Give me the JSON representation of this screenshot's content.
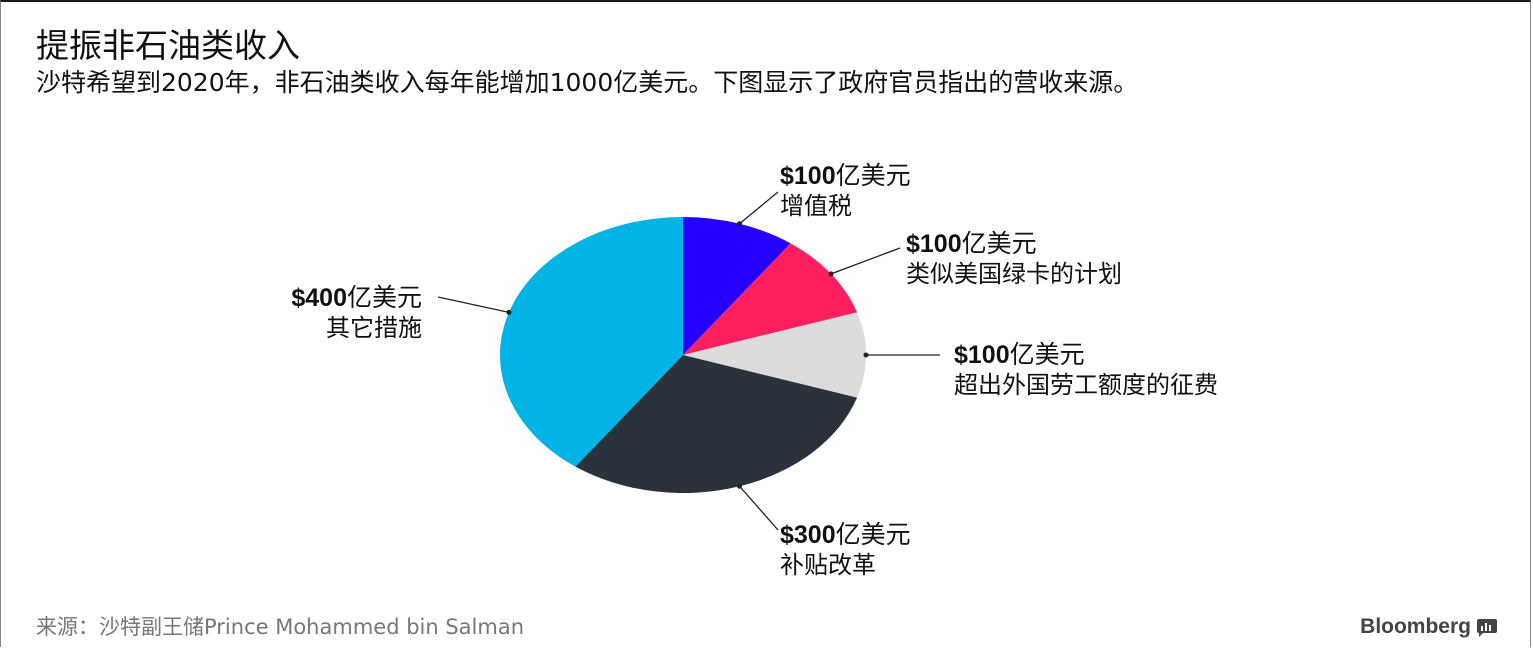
{
  "title": "提振非石油类收入",
  "subtitle": "沙特希望到2020年，非石油类收入每年能增加1000亿美元。下图显示了政府官员指出的营收来源。",
  "source": "来源：沙特副王储Prince Mohammed bin Salman",
  "brand": "Bloomberg",
  "brand_icon": "bloomberg-terminal-icon",
  "chart_data": {
    "type": "pie",
    "title": "提振非石油类收入",
    "unit": "亿美元",
    "slices": [
      {
        "label": "增值税",
        "value": 100,
        "value_text": "$100",
        "unit_text": "亿美元",
        "color": "#2600ff"
      },
      {
        "label": "类似美国绿卡的计划",
        "value": 100,
        "value_text": "$100",
        "unit_text": "亿美元",
        "color": "#ff1f5e"
      },
      {
        "label": "超出外国劳工额度的征费",
        "value": 100,
        "value_text": "$100",
        "unit_text": "亿美元",
        "color": "#dcdcdc"
      },
      {
        "label": "补贴改革",
        "value": 300,
        "value_text": "$300",
        "unit_text": "亿美元",
        "color": "#2a323c"
      },
      {
        "label": "其它措施",
        "value": 400,
        "value_text": "$400",
        "unit_text": "亿美元",
        "color": "#00b4e6"
      }
    ]
  }
}
